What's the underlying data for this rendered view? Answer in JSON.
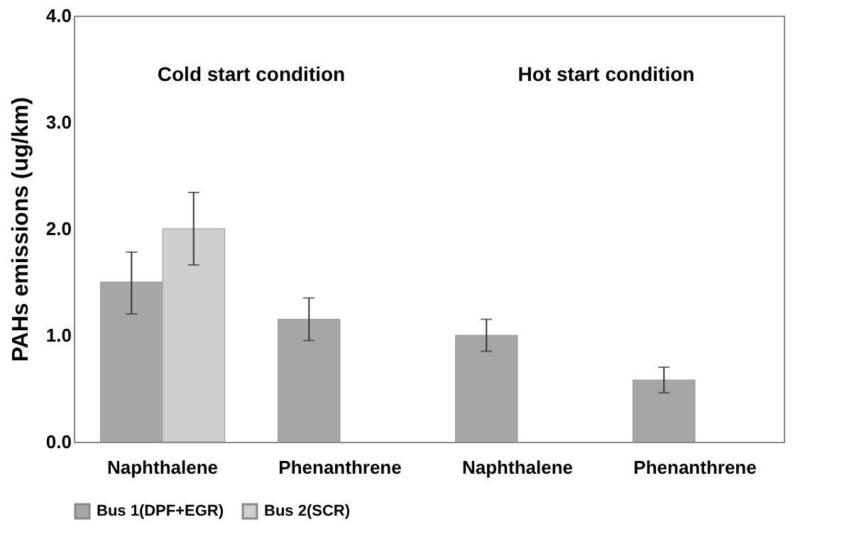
{
  "chart_data": {
    "type": "bar",
    "ylabel": "PAHs emissions (ug/km)",
    "categories": [
      "Naphthalene",
      "Phenanthrene",
      "Naphthalene",
      "Phenanthrene"
    ],
    "series": [
      {
        "name": "Bus 1(DPF+EGR)",
        "color": "#a6a6a6",
        "values": [
          1.5,
          1.15,
          1.0,
          0.58
        ],
        "errors": [
          [
            1.2,
            1.78
          ],
          [
            0.95,
            1.35
          ],
          [
            0.85,
            1.15
          ],
          [
            0.46,
            0.7
          ]
        ]
      },
      {
        "name": "Bus 2(SCR)",
        "color": "#cfcfcf",
        "values": [
          2.0,
          null,
          null,
          null
        ],
        "errors": [
          [
            1.66,
            2.34
          ],
          null,
          null,
          null
        ]
      }
    ],
    "ylim": [
      0,
      4
    ],
    "yticks": [
      {
        "value": 0,
        "label": "0.0"
      },
      {
        "value": 1,
        "label": "1.0"
      },
      {
        "value": 2,
        "label": "2.0"
      },
      {
        "value": 3,
        "label": "3.0"
      },
      {
        "value": 4,
        "label": "4.0"
      }
    ],
    "annotations": [
      "Cold start condition",
      "Hot start condition"
    ],
    "legend": "bottom",
    "grid": false
  }
}
